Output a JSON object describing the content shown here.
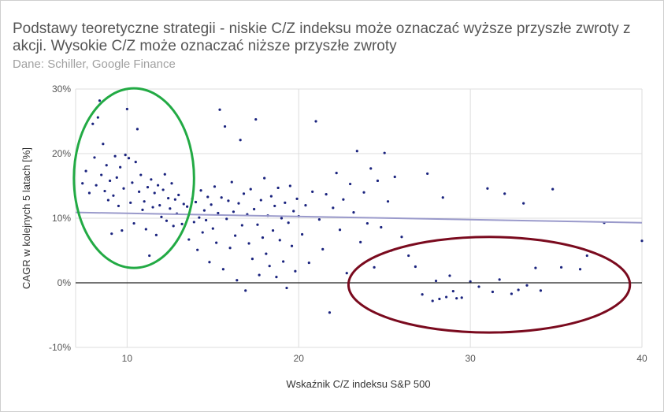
{
  "chart_data": {
    "type": "scatter",
    "title": "Podstawy teoretyczne strategii - niskie C/Z indeksu może oznaczać wyższe przyszłe zwroty z akcji. Wysokie C/Z może oznaczać niższe przyszłe zwroty",
    "subtitle": "Dane: Schiller, Google Finance",
    "xlabel": "Wskaźnik C/Z indeksu S&P 500",
    "ylabel": "CAGR w kolejnych 5 latach [%]",
    "xlim": [
      7,
      40
    ],
    "ylim": [
      -10,
      30
    ],
    "x_ticks": [
      10,
      20,
      30,
      40
    ],
    "y_ticks": [
      -10,
      0,
      10,
      20,
      30
    ],
    "x_tick_labels": [
      "10",
      "20",
      "30",
      "40"
    ],
    "y_tick_labels": [
      "-10%",
      "0%",
      "10%",
      "20%",
      "30%"
    ],
    "grid": true,
    "colors": {
      "points": "#1a237e",
      "trendline": "#9a9acb",
      "low_pe_ellipse": "#22aa44",
      "high_pe_ellipse": "#7a0a1e",
      "zero_line": "#222222",
      "grid": "#dddddd"
    },
    "trendline": {
      "x": [
        7,
        40
      ],
      "y": [
        10.9,
        9.3
      ]
    },
    "annotations": [
      {
        "type": "ellipse",
        "label": "",
        "center": [
          10.4,
          16.2
        ],
        "radius_x": 3.5,
        "radius_y": 13.9,
        "color": "#22aa44"
      },
      {
        "type": "ellipse",
        "label": "",
        "center": [
          31.1,
          -0.3
        ],
        "radius_x": 8.2,
        "radius_y": 7.4,
        "color": "#7a0a1e"
      }
    ],
    "points_note": "",
    "series": [
      {
        "name": "",
        "points": [
          [
            7.4,
            15.4
          ],
          [
            7.6,
            17.3
          ],
          [
            7.8,
            13.9
          ],
          [
            8.0,
            24.6
          ],
          [
            8.1,
            19.4
          ],
          [
            8.2,
            15.1
          ],
          [
            8.3,
            25.6
          ],
          [
            8.4,
            28.2
          ],
          [
            8.5,
            16.7
          ],
          [
            8.6,
            21.5
          ],
          [
            8.7,
            14.2
          ],
          [
            8.8,
            18.2
          ],
          [
            8.9,
            12.8
          ],
          [
            9.0,
            15.8
          ],
          [
            9.1,
            7.6
          ],
          [
            9.2,
            13.5
          ],
          [
            9.3,
            19.6
          ],
          [
            9.4,
            16.3
          ],
          [
            9.5,
            11.9
          ],
          [
            9.6,
            17.9
          ],
          [
            9.7,
            8.1
          ],
          [
            9.8,
            14.6
          ],
          [
            9.9,
            19.8
          ],
          [
            10.0,
            26.9
          ],
          [
            10.1,
            19.3
          ],
          [
            10.2,
            12.4
          ],
          [
            10.3,
            15.5
          ],
          [
            10.4,
            9.2
          ],
          [
            10.5,
            18.7
          ],
          [
            10.6,
            23.8
          ],
          [
            10.7,
            14.1
          ],
          [
            10.8,
            16.7
          ],
          [
            10.9,
            11.3
          ],
          [
            11.0,
            12.6
          ],
          [
            11.1,
            8.3
          ],
          [
            11.2,
            14.8
          ],
          [
            11.3,
            4.2
          ],
          [
            11.4,
            16.0
          ],
          [
            11.5,
            11.7
          ],
          [
            11.6,
            13.9
          ],
          [
            11.7,
            7.4
          ],
          [
            11.8,
            15.1
          ],
          [
            11.9,
            12.0
          ],
          [
            12.0,
            10.2
          ],
          [
            12.1,
            14.4
          ],
          [
            12.2,
            16.8
          ],
          [
            12.3,
            9.6
          ],
          [
            12.4,
            13.1
          ],
          [
            12.5,
            11.5
          ],
          [
            12.6,
            15.4
          ],
          [
            12.7,
            8.8
          ],
          [
            12.8,
            12.9
          ],
          [
            12.9,
            10.7
          ],
          [
            13.0,
            13.6
          ],
          [
            13.2,
            9.1
          ],
          [
            13.3,
            12.2
          ],
          [
            13.5,
            11.8
          ],
          [
            13.6,
            6.7
          ],
          [
            13.8,
            13.0
          ],
          [
            13.9,
            9.4
          ],
          [
            14.0,
            12.5
          ],
          [
            14.1,
            5.1
          ],
          [
            14.2,
            10.1
          ],
          [
            14.3,
            14.3
          ],
          [
            14.4,
            7.8
          ],
          [
            14.5,
            11.2
          ],
          [
            14.6,
            9.7
          ],
          [
            14.7,
            13.3
          ],
          [
            14.8,
            3.2
          ],
          [
            14.9,
            12.1
          ],
          [
            15.0,
            8.4
          ],
          [
            15.1,
            14.9
          ],
          [
            15.2,
            6.2
          ],
          [
            15.3,
            10.8
          ],
          [
            15.4,
            26.8
          ],
          [
            15.5,
            13.2
          ],
          [
            15.6,
            2.1
          ],
          [
            15.7,
            24.2
          ],
          [
            15.8,
            9.9
          ],
          [
            15.9,
            12.7
          ],
          [
            16.0,
            5.4
          ],
          [
            16.1,
            15.6
          ],
          [
            16.2,
            11.0
          ],
          [
            16.3,
            7.3
          ],
          [
            16.4,
            0.4
          ],
          [
            16.5,
            12.3
          ],
          [
            16.6,
            22.1
          ],
          [
            16.7,
            8.9
          ],
          [
            16.8,
            13.8
          ],
          [
            16.9,
            -1.2
          ],
          [
            17.0,
            10.6
          ],
          [
            17.1,
            6.1
          ],
          [
            17.2,
            14.5
          ],
          [
            17.3,
            3.7
          ],
          [
            17.4,
            11.4
          ],
          [
            17.5,
            25.3
          ],
          [
            17.6,
            9.0
          ],
          [
            17.7,
            1.2
          ],
          [
            17.8,
            12.8
          ],
          [
            17.9,
            7.0
          ],
          [
            18.0,
            16.2
          ],
          [
            18.1,
            4.5
          ],
          [
            18.2,
            10.4
          ],
          [
            18.3,
            2.6
          ],
          [
            18.4,
            13.4
          ],
          [
            18.5,
            8.1
          ],
          [
            18.6,
            11.9
          ],
          [
            18.7,
            0.9
          ],
          [
            18.8,
            14.7
          ],
          [
            18.9,
            6.6
          ],
          [
            19.0,
            10.0
          ],
          [
            19.1,
            3.3
          ],
          [
            19.2,
            12.4
          ],
          [
            19.3,
            -0.8
          ],
          [
            19.4,
            9.3
          ],
          [
            19.5,
            15.0
          ],
          [
            19.6,
            5.7
          ],
          [
            19.7,
            11.1
          ],
          [
            19.8,
            1.8
          ],
          [
            19.9,
            13.0
          ],
          [
            20.0,
            10.3
          ],
          [
            20.2,
            7.5
          ],
          [
            20.4,
            12.0
          ],
          [
            20.6,
            3.1
          ],
          [
            20.8,
            14.1
          ],
          [
            21.0,
            25.0
          ],
          [
            21.2,
            9.8
          ],
          [
            21.4,
            5.2
          ],
          [
            21.6,
            13.7
          ],
          [
            21.8,
            -4.6
          ],
          [
            22.0,
            11.6
          ],
          [
            22.2,
            17.0
          ],
          [
            22.4,
            8.2
          ],
          [
            22.6,
            12.9
          ],
          [
            22.8,
            1.5
          ],
          [
            23.0,
            15.3
          ],
          [
            23.2,
            10.9
          ],
          [
            23.4,
            20.4
          ],
          [
            23.6,
            6.3
          ],
          [
            23.8,
            14.0
          ],
          [
            24.0,
            9.2
          ],
          [
            24.2,
            17.7
          ],
          [
            24.4,
            2.4
          ],
          [
            24.6,
            15.8
          ],
          [
            24.8,
            8.6
          ],
          [
            25.0,
            20.1
          ],
          [
            25.2,
            12.6
          ],
          [
            25.4,
            5.0
          ],
          [
            25.6,
            16.4
          ],
          [
            26.0,
            7.1
          ],
          [
            26.4,
            4.2
          ],
          [
            26.8,
            2.5
          ],
          [
            27.2,
            -1.8
          ],
          [
            27.5,
            16.9
          ],
          [
            27.8,
            -2.8
          ],
          [
            28.0,
            0.3
          ],
          [
            28.2,
            -2.5
          ],
          [
            28.4,
            13.2
          ],
          [
            28.6,
            -2.2
          ],
          [
            28.8,
            1.1
          ],
          [
            29.0,
            -1.3
          ],
          [
            29.2,
            -2.4
          ],
          [
            29.5,
            -2.3
          ],
          [
            30.0,
            0.2
          ],
          [
            30.5,
            -0.6
          ],
          [
            31.0,
            14.6
          ],
          [
            31.3,
            -1.4
          ],
          [
            31.7,
            0.5
          ],
          [
            32.0,
            13.8
          ],
          [
            32.4,
            -1.7
          ],
          [
            32.8,
            -1.1
          ],
          [
            33.1,
            12.3
          ],
          [
            33.3,
            -0.4
          ],
          [
            33.8,
            2.3
          ],
          [
            34.1,
            -1.2
          ],
          [
            34.8,
            14.5
          ],
          [
            35.3,
            2.4
          ],
          [
            36.4,
            2.1
          ],
          [
            36.8,
            4.2
          ],
          [
            37.8,
            9.3
          ],
          [
            40.0,
            6.5
          ]
        ]
      }
    ]
  }
}
